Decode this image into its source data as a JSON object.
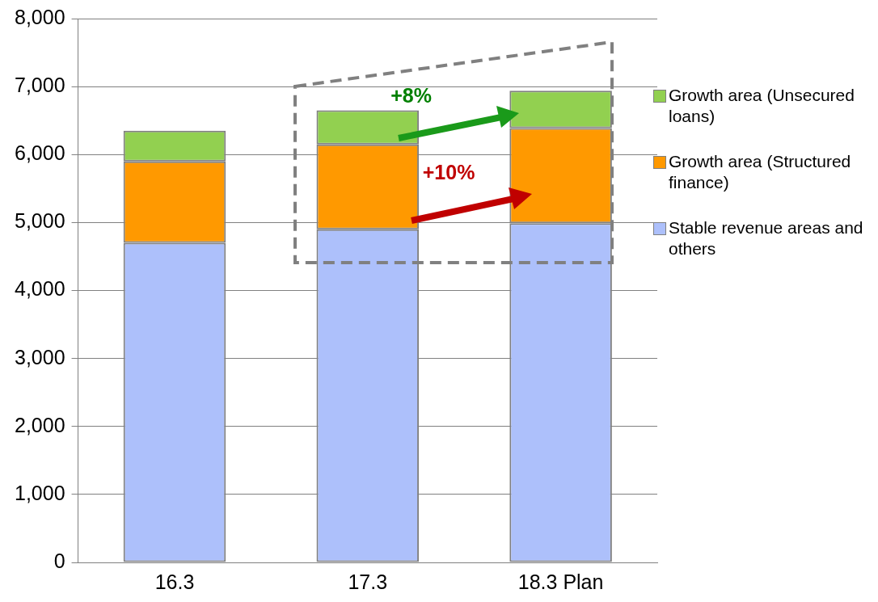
{
  "chart_data": {
    "type": "bar",
    "stacked": true,
    "categories": [
      "16.3",
      "17.3",
      "18.3 Plan"
    ],
    "series": [
      {
        "name": "Stable revenue areas and others",
        "color": "#adc0fb",
        "values": [
          4700,
          4900,
          4990
        ]
      },
      {
        "name": "Growth area (Structured finance)",
        "color": "#ff9900",
        "values": [
          1200,
          1250,
          1400
        ]
      },
      {
        "name": "Growth area (Unsecured loans)",
        "color": "#92d050",
        "values": [
          450,
          500,
          550
        ]
      }
    ],
    "ylim": [
      0,
      8000
    ],
    "yticks": [
      {
        "value": 0,
        "label": "0"
      },
      {
        "value": 1000,
        "label": "1,000"
      },
      {
        "value": 2000,
        "label": "2,000"
      },
      {
        "value": 3000,
        "label": "3,000"
      },
      {
        "value": 4000,
        "label": "4,000"
      },
      {
        "value": 5000,
        "label": "5,000"
      },
      {
        "value": 6000,
        "label": "6,000"
      },
      {
        "value": 7000,
        "label": "7,000"
      },
      {
        "value": 8000,
        "label": "8,000"
      }
    ],
    "grid": "y",
    "legend": "right",
    "annotations": [
      "+8%",
      "+10%"
    ]
  }
}
